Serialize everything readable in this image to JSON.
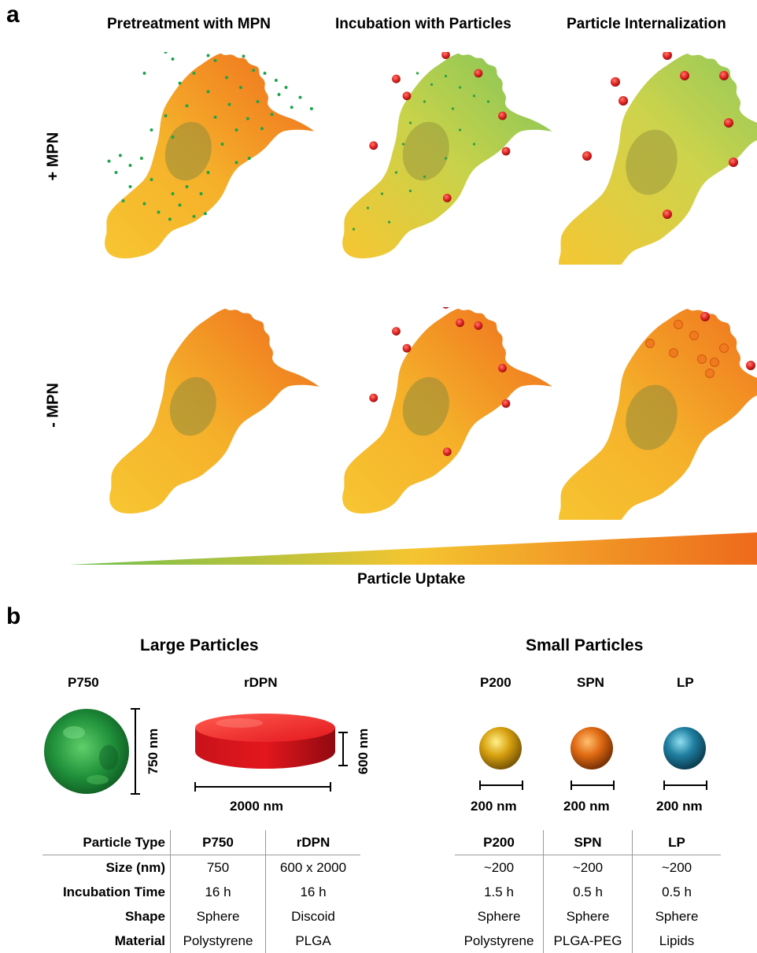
{
  "panel_a": {
    "letter": "a",
    "columns": [
      "Pretreatment with MPN",
      "Incubation with Particles",
      "Particle Internalization"
    ],
    "rows": [
      "+ MPN",
      "- MPN"
    ],
    "gradient_label": "Particle Uptake",
    "colors": {
      "low": "#6cbf4e",
      "mid": "#f4c530",
      "high": "#ee6a1c",
      "mpn_dot": "#1ea34a",
      "particle": "#e02424"
    }
  },
  "panel_b": {
    "letter": "b",
    "large_title": "Large Particles",
    "small_title": "Small Particles",
    "particles": {
      "p750": {
        "name": "P750",
        "dim": "750 nm",
        "color": "#1f8f3a"
      },
      "rdpn": {
        "name": "rDPN",
        "width_dim": "2000 nm",
        "height_dim": "600 nm",
        "color": "#e3171d"
      },
      "p200": {
        "name": "P200",
        "dim": "200 nm",
        "color": "#d8a10f"
      },
      "spn": {
        "name": "SPN",
        "dim": "200 nm",
        "color": "#e06a12"
      },
      "lp": {
        "name": "LP",
        "dim": "200 nm",
        "color": "#1f7fa0"
      }
    },
    "large_table": {
      "header": [
        "Particle Type",
        "P750",
        "rDPN"
      ],
      "rows": [
        [
          "Size (nm)",
          "750",
          "600 x 2000"
        ],
        [
          "Incubation Time",
          "16 h",
          "16 h"
        ],
        [
          "Shape",
          "Sphere",
          "Discoid"
        ],
        [
          "Material",
          "Polystyrene",
          "PLGA"
        ]
      ]
    },
    "small_table": {
      "header": [
        "P200",
        "SPN",
        "LP"
      ],
      "rows": [
        [
          "~200",
          "~200",
          "~200"
        ],
        [
          "1.5 h",
          "0.5 h",
          "0.5 h"
        ],
        [
          "Sphere",
          "Sphere",
          "Sphere"
        ],
        [
          "Polystyrene",
          "PLGA-PEG",
          "Lipids"
        ]
      ]
    }
  }
}
